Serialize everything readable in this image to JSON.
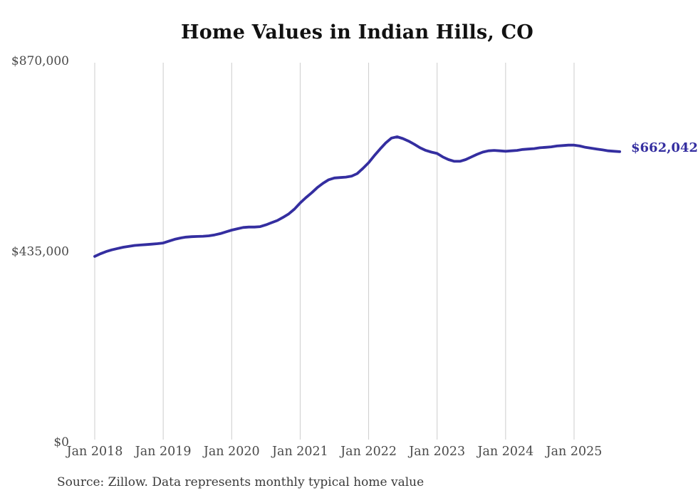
{
  "chart_data": {
    "type": "line",
    "title": "Home Values in Indian Hills, CO",
    "source": "Source: Zillow. Data represents monthly typical home value",
    "series_name": "Monthly typical home value",
    "x_start": "Jan 2018",
    "x_end": "Sep 2025",
    "x_frequency": "monthly",
    "x_tick_labels": [
      "Jan 2018",
      "Jan 2019",
      "Jan 2020",
      "Jan 2021",
      "Jan 2022",
      "Jan 2023",
      "Jan 2024",
      "Jan 2025"
    ],
    "y_ticks": [
      {
        "label": "$870,000",
        "value": 870000
      },
      {
        "label": "$435,000",
        "value": 435000
      },
      {
        "label": "$0",
        "value": 0
      }
    ],
    "ylim": [
      0,
      870000
    ],
    "grid": "vertical-only",
    "legend": "none",
    "end_label": "$662,042",
    "latest_value": 662042,
    "values": [
      423000,
      429000,
      434000,
      438000,
      441000,
      444000,
      446000,
      448000,
      449000,
      450000,
      451000,
      452000,
      453500,
      458000,
      462000,
      465000,
      467000,
      468000,
      468500,
      469000,
      470000,
      472000,
      475000,
      479000,
      483000,
      486000,
      489000,
      490000,
      490000,
      491000,
      495000,
      500000,
      505000,
      512000,
      520000,
      531000,
      545000,
      557000,
      568000,
      580000,
      590000,
      598000,
      602000,
      603000,
      604000,
      606000,
      612000,
      624000,
      637000,
      653000,
      668000,
      682000,
      693000,
      696000,
      692000,
      686000,
      679000,
      671000,
      665000,
      661000,
      658000,
      650000,
      644000,
      640000,
      640000,
      644000,
      650000,
      656000,
      661000,
      664000,
      665000,
      664000,
      663000,
      664000,
      665000,
      667000,
      668000,
      669000,
      671000,
      672000,
      673000,
      675000,
      676000,
      677000,
      677000,
      675000,
      672000,
      670000,
      668000,
      666000,
      664000,
      663000,
      662042
    ],
    "colors": {
      "line": "#342ea0",
      "end_label": "#342ea0",
      "gridline": "#cccccc",
      "axis_text": "#4a4a4a",
      "title": "#111111",
      "source": "#3a3a3a"
    }
  }
}
